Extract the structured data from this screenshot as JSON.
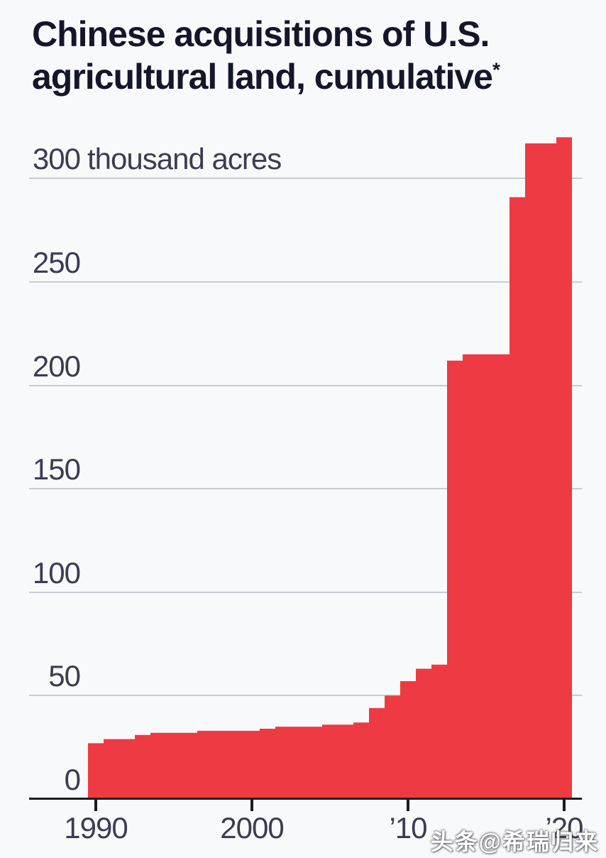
{
  "title": {
    "lines": [
      "Chinese acquisitions of U.S.",
      "agricultural land, cumulative"
    ],
    "footnote_marker": "*"
  },
  "chart_data": {
    "type": "area",
    "title": "Chinese acquisitions of U.S. agricultural land, cumulative*",
    "unit": "thousand acres",
    "x": [
      1990,
      1991,
      1992,
      1993,
      1994,
      1995,
      1996,
      1997,
      1998,
      1999,
      2000,
      2001,
      2002,
      2003,
      2004,
      2005,
      2006,
      2007,
      2008,
      2009,
      2010,
      2011,
      2012,
      2013,
      2014,
      2015,
      2016,
      2017,
      2018,
      2019,
      2020
    ],
    "values": [
      27,
      29,
      29,
      31,
      32,
      32,
      32,
      33,
      33,
      33,
      33,
      34,
      35,
      35,
      35,
      36,
      36,
      37,
      44,
      50,
      57,
      63,
      65,
      212,
      215,
      215,
      215,
      291,
      317,
      317,
      320
    ],
    "ylim": [
      0,
      330
    ],
    "grid": true,
    "legend": false,
    "y_ticks": [
      {
        "value": 0,
        "label": "0",
        "gridline": false
      },
      {
        "value": 50,
        "label": "50",
        "gridline": true
      },
      {
        "value": 100,
        "label": "100",
        "gridline": true
      },
      {
        "value": 150,
        "label": "150",
        "gridline": true
      },
      {
        "value": 200,
        "label": "200",
        "gridline": true
      },
      {
        "value": 250,
        "label": "250",
        "gridline": true
      },
      {
        "value": 300,
        "label": "300",
        "suffix": "thousand acres",
        "gridline": true
      }
    ],
    "x_ticks": [
      {
        "x": 1990,
        "label": "1990"
      },
      {
        "x": 2000,
        "label": "2000"
      },
      {
        "x": 2010,
        "label": "’10"
      },
      {
        "x": 2020,
        "label": "’20"
      }
    ],
    "series_color": "#ee3a43"
  },
  "watermark": {
    "text": "头条@希瑞归来"
  },
  "colors": {
    "background": "#f8f9fb",
    "bar": "#ee3a43",
    "grid": "#c8ccd2",
    "axis": "#1b1c21",
    "title_text": "#14172a",
    "label_text": "#3a3d52",
    "watermark_text": "#ffffff"
  }
}
